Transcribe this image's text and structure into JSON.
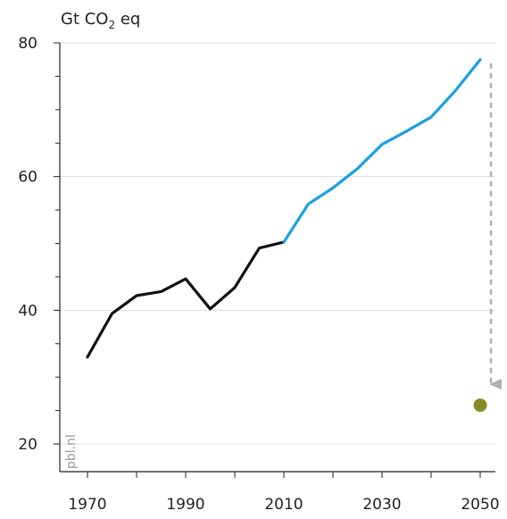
{
  "chart_data": {
    "type": "line",
    "unit_label": {
      "prefix": "Gt CO",
      "sub": "2",
      "suffix": " eq"
    },
    "x_ticks": [
      1970,
      1990,
      2010,
      2030,
      2050
    ],
    "y_ticks": [
      20,
      40,
      60,
      80
    ],
    "xlim": [
      1970,
      2050
    ],
    "ylim": [
      20,
      80
    ],
    "grid": true,
    "series": [
      {
        "color": "#111111",
        "x": [
          1970,
          1975,
          1980,
          1985,
          1990,
          1995,
          2000,
          2005,
          2010
        ],
        "y": [
          33,
          39.5,
          42.2,
          42.8,
          44.7,
          40.2,
          43.4,
          49.3,
          50.2
        ]
      },
      {
        "color": "#1ba0e2",
        "x": [
          2010,
          2015,
          2020,
          2025,
          2030,
          2035,
          2040,
          2045,
          2050
        ],
        "y": [
          50.2,
          55.9,
          58.3,
          61.2,
          64.8,
          66.8,
          68.9,
          72.9,
          77.5
        ]
      }
    ],
    "arrow": {
      "x": 2050,
      "from_y": 77.5,
      "to_y": 26.8,
      "color": "#b0b0b0"
    },
    "target_point": {
      "x": 2050,
      "y": 25.8,
      "color": "#8a8a2a"
    },
    "watermark": "pbl.nl"
  }
}
